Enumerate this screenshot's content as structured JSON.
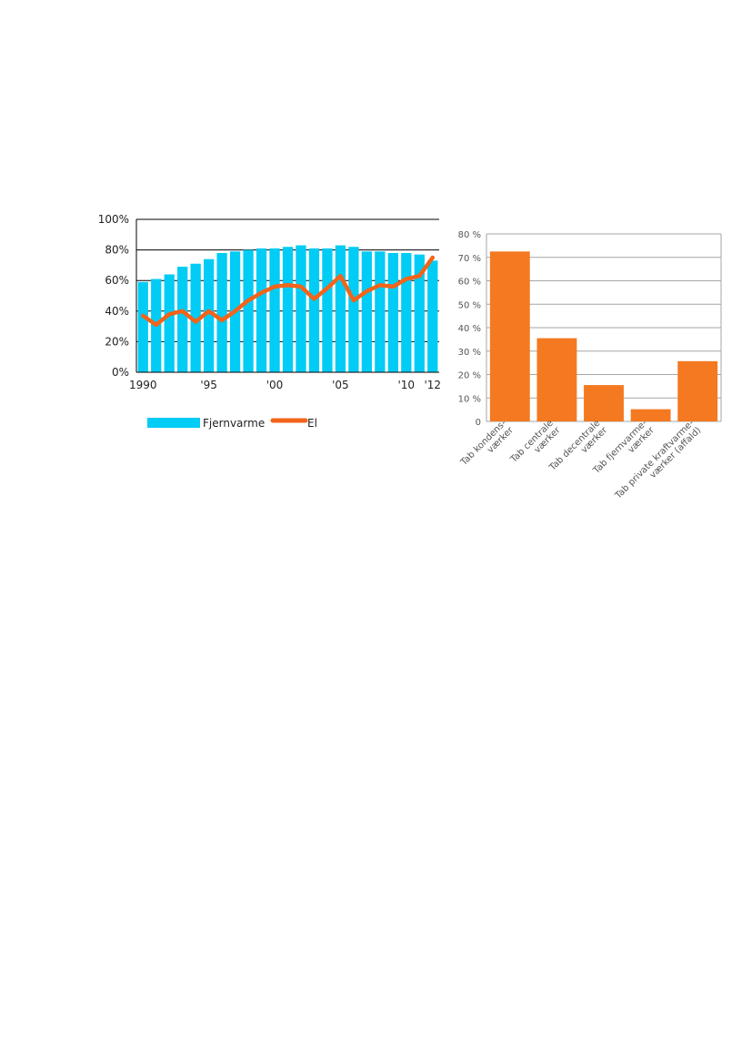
{
  "chart_data": [
    {
      "type": "bar+line",
      "x": [
        1990,
        1991,
        1992,
        1993,
        1994,
        1995,
        1996,
        1997,
        1998,
        1999,
        2000,
        2001,
        2002,
        2003,
        2004,
        2005,
        2006,
        2007,
        2008,
        2009,
        2010,
        2011,
        2012
      ],
      "x_tick_labels": [
        {
          "x": 1990,
          "label": "1990"
        },
        {
          "x": 1995,
          "label": "'95"
        },
        {
          "x": 2000,
          "label": "'00"
        },
        {
          "x": 2005,
          "label": "'05"
        },
        {
          "x": 2010,
          "label": "'10"
        },
        {
          "x": 2012,
          "label": "'12"
        }
      ],
      "y_tick_labels": [
        "0%",
        "20%",
        "40%",
        "60%",
        "80%",
        "100%"
      ],
      "ylim": [
        0,
        100
      ],
      "grid": true,
      "legend_position": "bottom",
      "series": [
        {
          "name": "Fjernvarme",
          "kind": "bar",
          "color": "#00ccf5",
          "values": [
            59,
            61,
            64,
            69,
            71,
            74,
            78,
            79,
            80,
            81,
            81,
            82,
            83,
            81,
            81,
            83,
            82,
            79,
            79,
            78,
            78,
            77,
            73
          ]
        },
        {
          "name": "El",
          "kind": "line",
          "color": "#f2641a",
          "values": [
            37,
            31,
            38,
            40,
            33,
            40,
            34,
            40,
            47,
            52,
            56,
            57,
            56,
            48,
            55,
            63,
            47,
            53,
            57,
            56,
            61,
            63,
            75
          ]
        }
      ]
    },
    {
      "type": "bar",
      "categories": [
        [
          "Tab kondens-",
          "værker"
        ],
        [
          "Tab centrale",
          "værker"
        ],
        [
          "Tab decentrale",
          "værker"
        ],
        [
          "Tab fjernvarme-",
          "værker"
        ],
        [
          "Tab private kraftvarme-",
          "værker (affald)"
        ]
      ],
      "values": [
        72.5,
        35.5,
        15.5,
        5.2,
        25.7
      ],
      "color": "#f47920",
      "y_tick_labels": [
        "0",
        "10 %",
        "20 %",
        "30 %",
        "40 %",
        "50 %",
        "60 %",
        "70 %",
        "80 %"
      ],
      "ylim": [
        0,
        80
      ],
      "grid": true
    }
  ]
}
